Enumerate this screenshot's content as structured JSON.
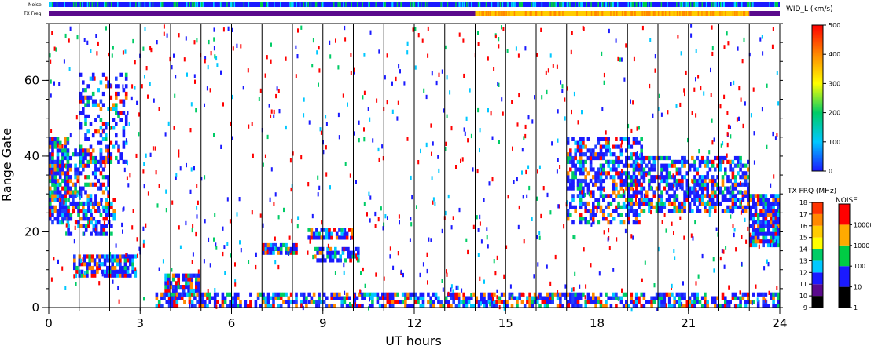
{
  "chart_data": {
    "type": "heatmap",
    "xlabel": "UT hours",
    "ylabel": "Range Gate",
    "xlim": [
      0,
      24
    ],
    "ylim": [
      0,
      75
    ],
    "x_ticks": [
      "0",
      "3",
      "6",
      "9",
      "12",
      "15",
      "18",
      "21",
      "24"
    ],
    "x_tick_values": [
      0,
      3,
      6,
      9,
      12,
      15,
      18,
      21,
      24
    ],
    "y_ticks": [
      "0",
      "20",
      "40",
      "60"
    ],
    "y_tick_values": [
      0,
      20,
      40,
      60
    ],
    "hour_lines": [
      1,
      2,
      3,
      4,
      5,
      6,
      7,
      8,
      9,
      10,
      11,
      12,
      13,
      14,
      15,
      16,
      17,
      18,
      19,
      20,
      21,
      22,
      23
    ],
    "strip_labels": {
      "noise": "Noise",
      "txfreq": "TX Freq"
    },
    "noise_strip": {
      "base_color": "#1a1aff",
      "accent_color": "#00cc44"
    },
    "txfreq_strip": {
      "segments": [
        {
          "start": 0,
          "end": 14,
          "color": "#5a0a8c"
        },
        {
          "start": 14,
          "end": 23,
          "color": "#ffcc00"
        },
        {
          "start": 23,
          "end": 24,
          "color": "#5a0a8c"
        }
      ]
    },
    "scatter_regions": [
      {
        "x0": 0.0,
        "x1": 0.7,
        "y0": 22,
        "y1": 45,
        "density": 0.75
      },
      {
        "x0": 0.5,
        "x1": 2.0,
        "y0": 24,
        "y1": 42,
        "density": 0.45
      },
      {
        "x0": 1.0,
        "x1": 2.6,
        "y0": 38,
        "y1": 62,
        "density": 0.35
      },
      {
        "x0": 0.6,
        "x1": 2.2,
        "y0": 19,
        "y1": 29,
        "density": 0.5
      },
      {
        "x0": 0.8,
        "x1": 2.9,
        "y0": 8,
        "y1": 14,
        "density": 0.7
      },
      {
        "x0": 3.8,
        "x1": 5.0,
        "y0": 3,
        "y1": 9,
        "density": 0.85
      },
      {
        "x0": 7.0,
        "x1": 8.2,
        "y0": 14,
        "y1": 17,
        "density": 0.8
      },
      {
        "x0": 8.5,
        "x1": 10.0,
        "y0": 18,
        "y1": 21,
        "density": 0.7
      },
      {
        "x0": 8.7,
        "x1": 10.2,
        "y0": 12,
        "y1": 16,
        "density": 0.7
      },
      {
        "x0": 3.5,
        "x1": 24.0,
        "y0": 0,
        "y1": 4,
        "density": 0.6
      },
      {
        "x0": 17.0,
        "x1": 19.5,
        "y0": 22,
        "y1": 45,
        "density": 0.55
      },
      {
        "x0": 19.0,
        "x1": 23.0,
        "y0": 25,
        "y1": 40,
        "density": 0.6
      },
      {
        "x0": 23.0,
        "x1": 24.0,
        "y0": 16,
        "y1": 30,
        "density": 0.85
      }
    ],
    "colorbars": [
      {
        "title": "WID_L (km/s)",
        "ticks": [
          "0",
          "100",
          "200",
          "300",
          "400",
          "500"
        ],
        "tick_values": [
          0,
          100,
          200,
          300,
          400,
          500
        ],
        "colors": [
          "#1a1aff",
          "#00c8ff",
          "#00cc66",
          "#ffff00",
          "#ff8800",
          "#ff0000"
        ]
      },
      {
        "title": "TX FRQ (MHz)",
        "ticks": [
          "9",
          "10",
          "11",
          "12",
          "13",
          "14",
          "15",
          "16",
          "17",
          "18"
        ],
        "colors": [
          "#000000",
          "#5a0a8c",
          "#1a1aff",
          "#00c8ff",
          "#00cc66",
          "#ffff00",
          "#ffcc00",
          "#ff8800",
          "#ff3300"
        ]
      },
      {
        "title": "NOISE",
        "ticks": [
          "1",
          "10",
          "100",
          "1000",
          "10000"
        ],
        "colors": [
          "#000000",
          "#1a1aff",
          "#00cc44",
          "#ffaa00",
          "#ff0000"
        ]
      }
    ]
  }
}
